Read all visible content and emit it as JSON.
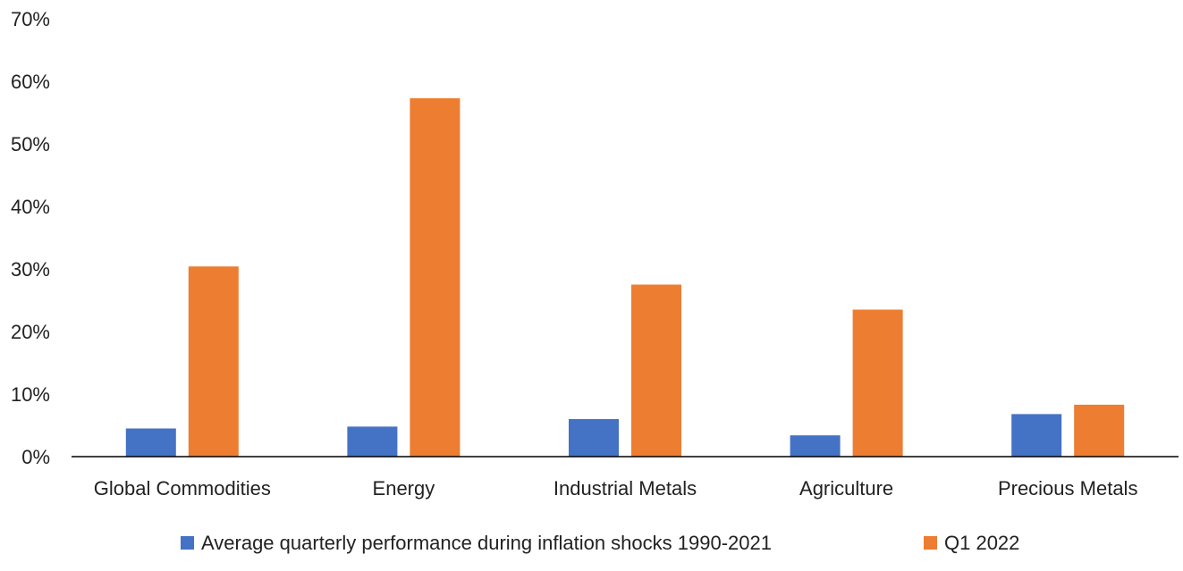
{
  "chart_data": {
    "type": "bar",
    "title": "",
    "xlabel": "",
    "ylabel": "",
    "categories": [
      "Global Commodities",
      "Energy",
      "Industrial Metals",
      "Agriculture",
      "Precious Metals"
    ],
    "series": [
      {
        "name": "Average quarterly performance during inflation shocks 1990-2021",
        "color": "#4472c4",
        "values": [
          4.5,
          4.8,
          6.0,
          3.4,
          6.8
        ]
      },
      {
        "name": "Q1 2022",
        "color": "#ed7d31",
        "values": [
          30.4,
          57.3,
          27.5,
          23.5,
          8.3
        ]
      }
    ],
    "ylim": [
      0,
      70
    ],
    "y_ticks": [
      0,
      10,
      20,
      30,
      40,
      50,
      60,
      70
    ],
    "y_tick_format": "percent",
    "grid": false,
    "legend": {
      "position": "bottom"
    }
  }
}
